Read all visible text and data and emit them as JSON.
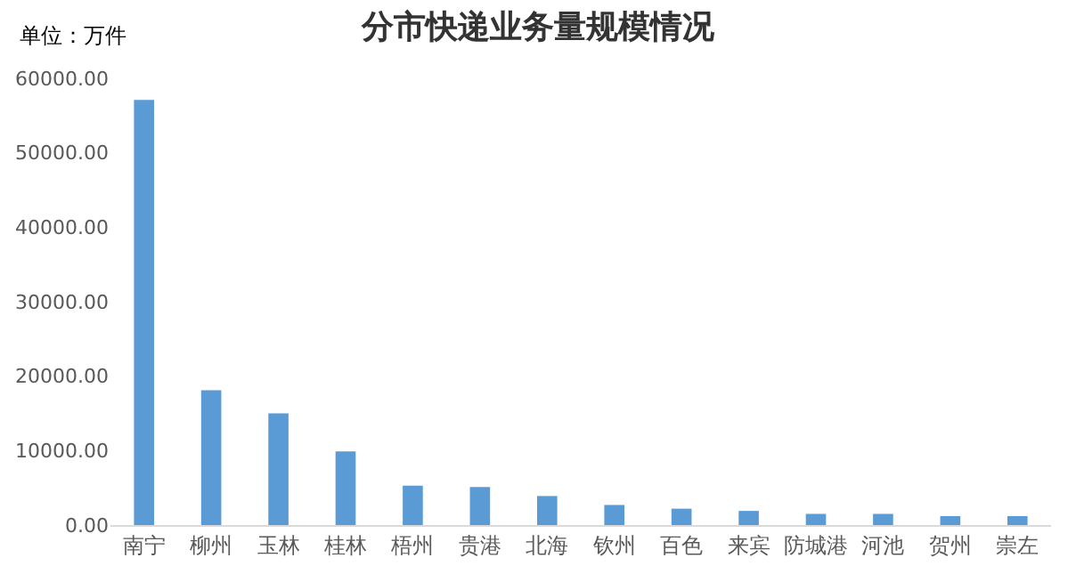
{
  "chart_data": {
    "type": "bar",
    "title": "分市快递业务量规模情况",
    "annotations": [
      "单位：万件"
    ],
    "categories": [
      "南宁",
      "柳州",
      "玉林",
      "桂林",
      "梧州",
      "贵港",
      "北海",
      "钦州",
      "百色",
      "来宾",
      "防城港",
      "河池",
      "贺州",
      "崇左"
    ],
    "series": [
      {
        "color": "#5b9bd5",
        "values": [
          57100,
          18100,
          15000,
          9900,
          5300,
          5100,
          3900,
          2700,
          2200,
          1900,
          1500,
          1500,
          1200,
          1200
        ]
      }
    ],
    "ylim": [
      0,
      60000
    ],
    "yticks": [
      {
        "value": 0,
        "label": "0.00"
      },
      {
        "value": 10000,
        "label": "10000.00"
      },
      {
        "value": 20000,
        "label": "20000.00"
      },
      {
        "value": 30000,
        "label": "30000.00"
      },
      {
        "value": 40000,
        "label": "40000.00"
      },
      {
        "value": 50000,
        "label": "50000.00"
      },
      {
        "value": 60000,
        "label": "60000.00"
      }
    ],
    "grid": false
  }
}
